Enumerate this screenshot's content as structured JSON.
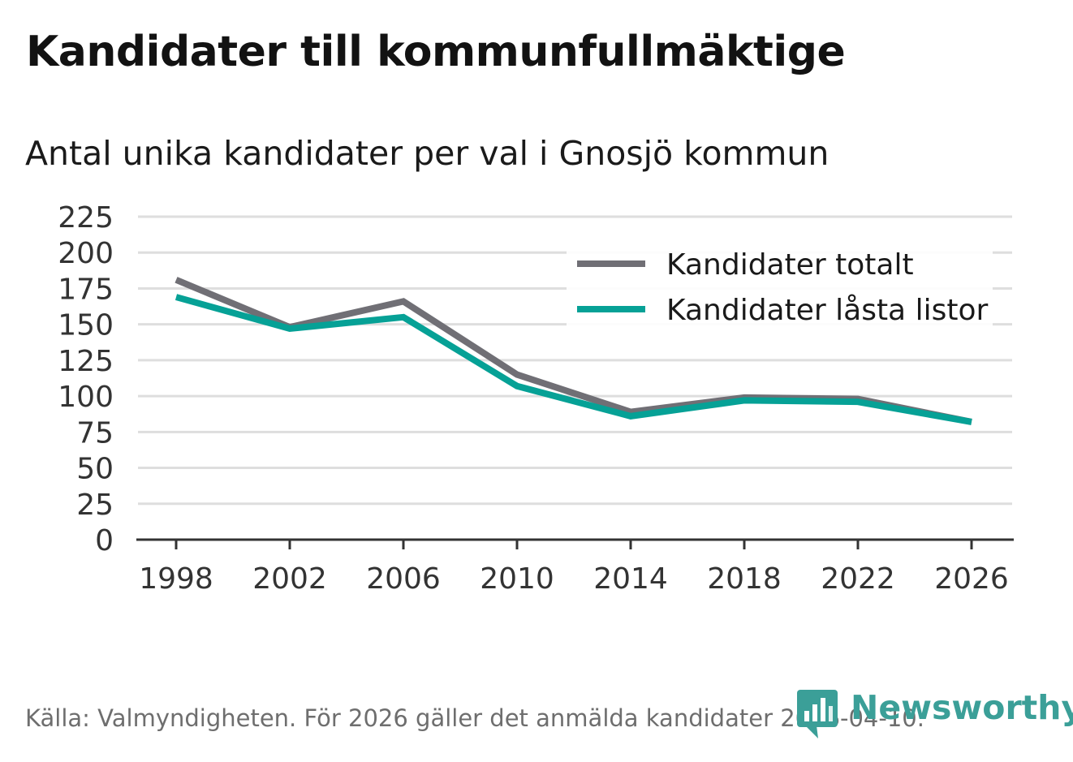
{
  "title": "Kandidater till kommunfullmäktige",
  "subtitle": "Antal unika kandidater per val i Gnosjö kommun",
  "footer": "Källa: Valmyndigheten. För 2026 gäller det anmälda kandidater 2026-04-10.",
  "brand": "Newsworthy",
  "colors": {
    "total": "#706f75",
    "locked": "#06a196",
    "brand": "#3b9f98",
    "grid": "#dedede",
    "axis": "#333333"
  },
  "chart_data": {
    "type": "line",
    "title": "Kandidater till kommunfullmäktige",
    "subtitle": "Antal unika kandidater per val i Gnosjö kommun",
    "xlabel": "",
    "ylabel": "",
    "x": [
      "1998",
      "2002",
      "2006",
      "2010",
      "2014",
      "2018",
      "2022",
      "2026"
    ],
    "ylim": [
      0,
      225
    ],
    "yticks": [
      0,
      25,
      50,
      75,
      100,
      125,
      150,
      175,
      200,
      225
    ],
    "grid": true,
    "legend_position": "top-right",
    "series": [
      {
        "name": "Kandidater totalt",
        "color_key": "total",
        "values": [
          181,
          148,
          166,
          115,
          89,
          99,
          98,
          82
        ]
      },
      {
        "name": "Kandidater låsta listor",
        "color_key": "locked",
        "values": [
          169,
          147,
          155,
          107,
          86,
          97,
          96,
          82
        ]
      }
    ]
  }
}
